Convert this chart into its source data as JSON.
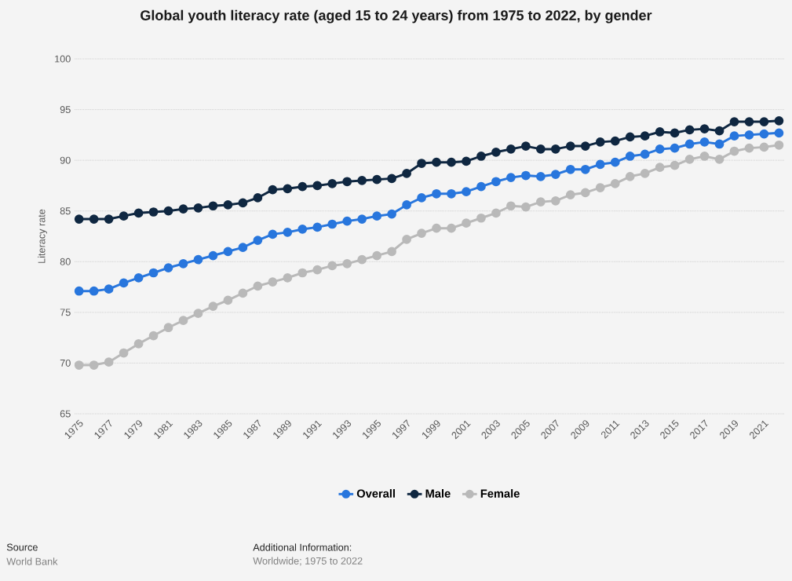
{
  "chart_data": {
    "type": "line",
    "title": "Global youth literacy rate (aged 15 to 24 years) from 1975 to 2022, by gender",
    "ylabel": "Literacy rate",
    "x": [
      1975,
      1976,
      1977,
      1978,
      1979,
      1980,
      1981,
      1982,
      1983,
      1984,
      1985,
      1986,
      1987,
      1988,
      1989,
      1990,
      1991,
      1992,
      1993,
      1994,
      1995,
      1996,
      1997,
      1998,
      1999,
      2000,
      2001,
      2002,
      2003,
      2004,
      2005,
      2006,
      2007,
      2008,
      2009,
      2010,
      2011,
      2012,
      2013,
      2014,
      2015,
      2016,
      2017,
      2018,
      2019,
      2020,
      2021,
      2022
    ],
    "series": [
      {
        "name": "Overall",
        "color": "#2876dd",
        "values": [
          77.1,
          77.1,
          77.3,
          77.9,
          78.4,
          78.9,
          79.4,
          79.8,
          80.2,
          80.6,
          81.0,
          81.4,
          82.1,
          82.7,
          82.9,
          83.2,
          83.4,
          83.7,
          84.0,
          84.2,
          84.5,
          84.7,
          85.6,
          86.3,
          86.7,
          86.7,
          86.9,
          87.4,
          87.9,
          88.3,
          88.5,
          88.4,
          88.6,
          89.1,
          89.1,
          89.6,
          89.8,
          90.4,
          90.6,
          91.1,
          91.2,
          91.6,
          91.8,
          91.6,
          92.4,
          92.5,
          92.6,
          92.7
        ]
      },
      {
        "name": "Male",
        "color": "#0f2741",
        "values": [
          84.2,
          84.2,
          84.2,
          84.5,
          84.8,
          84.9,
          85.0,
          85.2,
          85.3,
          85.5,
          85.6,
          85.8,
          86.3,
          87.1,
          87.2,
          87.4,
          87.5,
          87.7,
          87.9,
          88.0,
          88.1,
          88.2,
          88.7,
          89.7,
          89.8,
          89.8,
          89.9,
          90.4,
          90.8,
          91.1,
          91.4,
          91.1,
          91.1,
          91.4,
          91.4,
          91.8,
          91.9,
          92.3,
          92.4,
          92.8,
          92.7,
          93.0,
          93.1,
          92.9,
          93.8,
          93.8,
          93.8,
          93.9
        ]
      },
      {
        "name": "Female",
        "color": "#b9b9b9",
        "values": [
          69.8,
          69.8,
          70.1,
          71.0,
          71.9,
          72.7,
          73.5,
          74.2,
          74.9,
          75.6,
          76.2,
          76.9,
          77.6,
          78.0,
          78.4,
          78.9,
          79.2,
          79.6,
          79.8,
          80.2,
          80.6,
          81.0,
          82.2,
          82.8,
          83.3,
          83.3,
          83.8,
          84.3,
          84.8,
          85.5,
          85.4,
          85.9,
          86.0,
          86.6,
          86.8,
          87.3,
          87.7,
          88.4,
          88.7,
          89.3,
          89.5,
          90.1,
          90.4,
          90.1,
          90.9,
          91.2,
          91.3,
          91.5
        ]
      }
    ],
    "xlim": [
      1974.7,
      2022.4
    ],
    "xticks": [
      1975,
      1977,
      1979,
      1981,
      1983,
      1985,
      1987,
      1989,
      1991,
      1993,
      1995,
      1997,
      1999,
      2001,
      2003,
      2005,
      2007,
      2009,
      2011,
      2013,
      2015,
      2017,
      2019,
      2021
    ],
    "ylim": [
      65,
      100
    ],
    "yticks": [
      65,
      70,
      75,
      80,
      85,
      90,
      95,
      100
    ],
    "grid": "y",
    "legend": "bottom",
    "marker": "circle",
    "line_style": "solid",
    "annotations": [
      "Source",
      "World Bank",
      "Additional Information:",
      "Worldwide; 1975 to 2022"
    ]
  }
}
